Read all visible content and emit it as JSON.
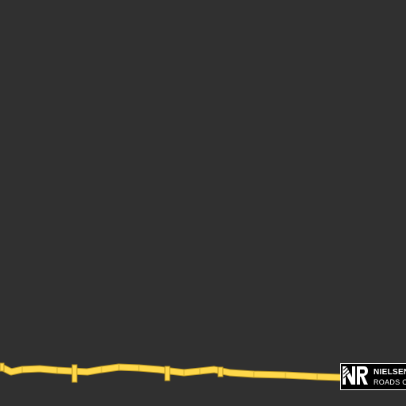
{
  "map": {
    "background_color": "#303030",
    "road_color": "#ffd84a",
    "road_outline_color": "#c9a52a"
  },
  "logo": {
    "line1": "NIELSEN",
    "line2": "ROADS C",
    "monogram_icon": "nr-monogram-icon",
    "background_color": "#000000",
    "text_color": "#ffffff"
  }
}
